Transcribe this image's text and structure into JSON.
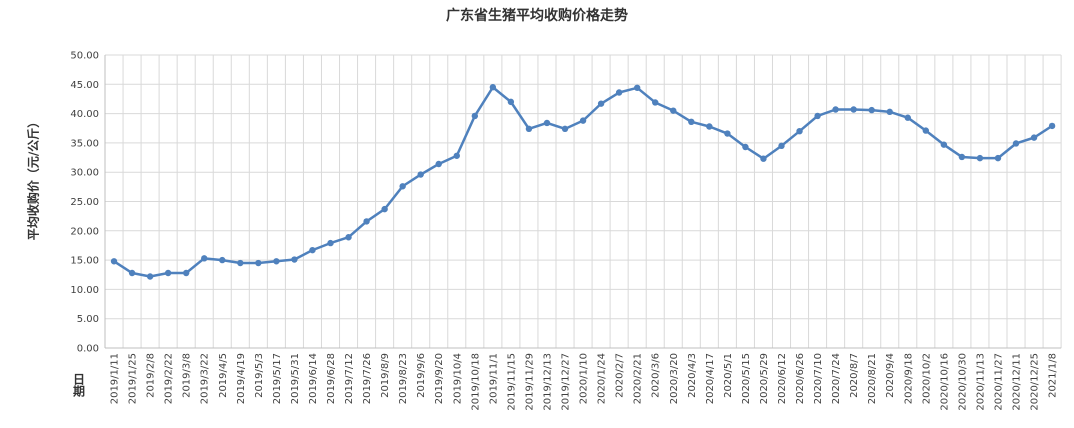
{
  "chart_data": {
    "type": "line",
    "title": "广东省生猪平均收购价格走势",
    "y_label": "平均收购价（元/公斤）",
    "x_label": "日期",
    "categories": [
      "2019/1/11",
      "2019/1/25",
      "2019/2/8",
      "2019/2/22",
      "2019/3/8",
      "2019/3/22",
      "2019/4/5",
      "2019/4/19",
      "2019/5/3",
      "2019/5/17",
      "2019/5/31",
      "2019/6/14",
      "2019/6/28",
      "2019/7/12",
      "2019/7/26",
      "2019/8/9",
      "2019/8/23",
      "2019/9/6",
      "2019/9/20",
      "2019/10/4",
      "2019/10/18",
      "2019/11/1",
      "2019/11/15",
      "2019/11/29",
      "2019/12/13",
      "2019/12/27",
      "2020/1/10",
      "2020/1/24",
      "2020/2/7",
      "2020/2/21",
      "2020/3/6",
      "2020/3/20",
      "2020/4/3",
      "2020/4/17",
      "2020/5/1",
      "2020/5/15",
      "2020/5/29",
      "2020/6/12",
      "2020/6/26",
      "2020/7/10",
      "2020/7/24",
      "2020/8/7",
      "2020/8/21",
      "2020/9/4",
      "2020/9/18",
      "2020/10/2",
      "2020/10/16",
      "2020/10/30",
      "2020/11/13",
      "2020/11/27",
      "2020/12/11",
      "2020/12/25",
      "2021/1/8"
    ],
    "series": [
      {
        "color": "#4f81bd",
        "values": [
          14.8,
          12.8,
          12.2,
          12.8,
          12.8,
          15.3,
          15.0,
          14.5,
          14.5,
          14.8,
          15.1,
          16.7,
          17.9,
          18.9,
          21.6,
          23.7,
          27.6,
          29.6,
          31.4,
          32.8,
          39.6,
          44.5,
          42.0,
          37.4,
          38.4,
          37.4,
          38.8,
          41.7,
          43.6,
          44.4,
          41.9,
          40.5,
          38.6,
          37.8,
          36.6,
          34.3,
          32.3,
          34.5,
          37.0,
          39.6,
          40.7,
          40.7,
          40.6,
          40.3,
          39.3,
          37.1,
          34.7,
          32.6,
          32.4,
          32.4,
          34.9,
          35.9,
          37.9
        ]
      }
    ],
    "ylim": [
      0,
      50
    ],
    "yticks": [
      {
        "value": 0,
        "label": "0.00"
      },
      {
        "value": 5,
        "label": "5.00"
      },
      {
        "value": 10,
        "label": "10.00"
      },
      {
        "value": 15,
        "label": "15.00"
      },
      {
        "value": 20,
        "label": "20.00"
      },
      {
        "value": 25,
        "label": "25.00"
      },
      {
        "value": 30,
        "label": "30.00"
      },
      {
        "value": 35,
        "label": "35.00"
      },
      {
        "value": 40,
        "label": "40.00"
      },
      {
        "value": 45,
        "label": "45.00"
      },
      {
        "value": 50,
        "label": "50.00"
      }
    ],
    "grid": true
  }
}
